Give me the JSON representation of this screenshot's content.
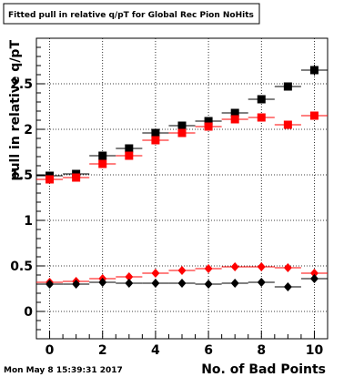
{
  "chart_data": {
    "type": "scatter",
    "title": "Fitted pull in relative q/pT  for Global Rec Pion NoHits",
    "xlabel": "No. of Bad Points",
    "ylabel": "pull in relative q/pT",
    "xlim": [
      -0.5,
      10.5
    ],
    "ylim": [
      -0.3,
      3.0
    ],
    "x_ticks": [
      "0",
      "2",
      "4",
      "6",
      "8",
      "10"
    ],
    "y_ticks": [
      "0",
      "0.5",
      "1",
      "1.5",
      "2",
      "2.5"
    ],
    "grid": true,
    "timestamp": "Mon May  8 15:39:31 2017",
    "series": [
      {
        "marker": "square",
        "color": "#000000",
        "x": [
          0,
          1,
          2,
          3,
          4,
          5,
          6,
          7,
          8,
          9,
          10
        ],
        "y": [
          1.49,
          1.51,
          1.71,
          1.79,
          1.96,
          2.04,
          2.09,
          2.18,
          2.33,
          2.47,
          2.65
        ],
        "yerr": [
          0.02,
          0.02,
          0.03,
          0.03,
          0.03,
          0.03,
          0.03,
          0.03,
          0.04,
          0.04,
          0.06
        ]
      },
      {
        "marker": "square",
        "color": "#ff0000",
        "x": [
          0,
          1,
          2,
          3,
          4,
          5,
          6,
          7,
          8,
          9,
          10
        ],
        "y": [
          1.45,
          1.47,
          1.62,
          1.71,
          1.88,
          1.96,
          2.03,
          2.11,
          2.13,
          2.05,
          2.15
        ],
        "yerr": [
          0.02,
          0.02,
          0.02,
          0.03,
          0.03,
          0.03,
          0.03,
          0.03,
          0.03,
          0.03,
          0.04
        ]
      },
      {
        "marker": "diamond",
        "color": "#ff0000",
        "x": [
          0,
          1,
          2,
          3,
          4,
          5,
          6,
          7,
          8,
          9,
          10
        ],
        "y": [
          0.32,
          0.33,
          0.36,
          0.38,
          0.42,
          0.45,
          0.47,
          0.49,
          0.49,
          0.48,
          0.42
        ],
        "yerr": [
          0.01,
          0.01,
          0.01,
          0.01,
          0.01,
          0.01,
          0.01,
          0.01,
          0.01,
          0.01,
          0.02
        ]
      },
      {
        "marker": "diamond",
        "color": "#000000",
        "x": [
          0,
          1,
          2,
          3,
          4,
          5,
          6,
          7,
          8,
          9,
          10
        ],
        "y": [
          0.3,
          0.3,
          0.32,
          0.31,
          0.31,
          0.31,
          0.3,
          0.31,
          0.32,
          0.27,
          0.36
        ],
        "yerr": [
          0.01,
          0.01,
          0.01,
          0.01,
          0.01,
          0.01,
          0.01,
          0.01,
          0.01,
          0.02,
          0.02
        ]
      }
    ]
  }
}
